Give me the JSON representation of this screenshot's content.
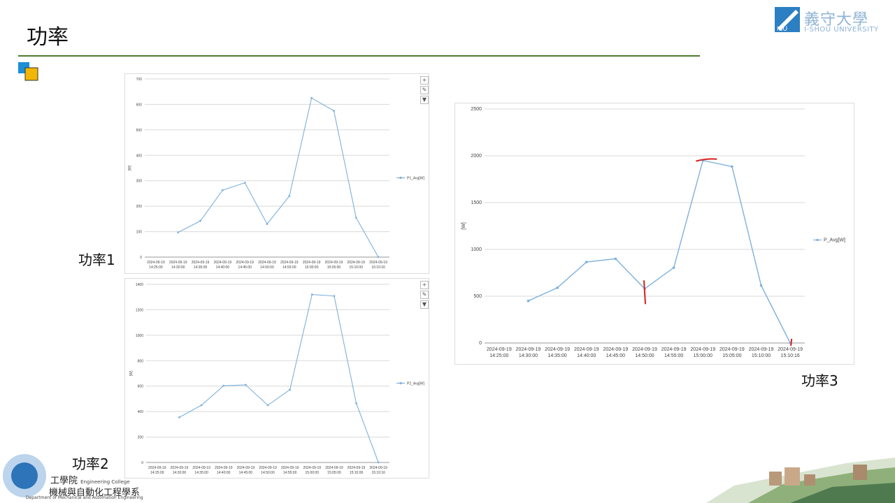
{
  "slide": {
    "title": "功率",
    "logo": {
      "cn": "義守大學",
      "en": "I-SHOU UNIVERSITY",
      "mark": "ISU"
    },
    "labels": {
      "chart1": "功率1",
      "chart2": "功率2",
      "chart3": "功率3"
    },
    "footer": {
      "college_cn": "工學院",
      "college_en": "Engineering College",
      "dept_cn": "機械與自動化工程學系",
      "dept_en": "Department of Mechanical and Automation Engineering"
    },
    "tool_icons": [
      "plus-icon",
      "brush-icon",
      "filter-icon"
    ],
    "colors": {
      "series": "#7eb1dc",
      "rule": "#4e7a2c",
      "annotation": "#d81e1e"
    }
  },
  "chart_data": [
    {
      "type": "line",
      "ylabel": "[W]",
      "ylim": [
        0,
        700
      ],
      "yticks": [
        0,
        100,
        200,
        300,
        400,
        500,
        600,
        700
      ],
      "categories": [
        [
          "2024-09-19",
          "14:25:00"
        ],
        [
          "2024-09-19",
          "14:30:00"
        ],
        [
          "2024-09-19",
          "14:35:00"
        ],
        [
          "2024-09-19",
          "14:40:00"
        ],
        [
          "2024-09-19",
          "14:45:00"
        ],
        [
          "2024-09-19",
          "14:50:00"
        ],
        [
          "2024-09-19",
          "14:55:00"
        ],
        [
          "2024-09-19",
          "15:00:00"
        ],
        [
          "2024-09-19",
          "15:05:00"
        ],
        [
          "2024-09-19",
          "15:10:00"
        ],
        [
          "2024-09-19",
          "15:10:16"
        ]
      ],
      "series": [
        {
          "name": "P1_Avg[W]",
          "values": [
            null,
            97,
            142,
            263,
            292,
            130,
            240,
            625,
            575,
            155,
            0
          ]
        }
      ],
      "legend": "right",
      "grid": true
    },
    {
      "type": "line",
      "ylabel": "[W]",
      "ylim": [
        0,
        1400
      ],
      "yticks": [
        0,
        200,
        400,
        600,
        800,
        1000,
        1200,
        1400
      ],
      "categories": [
        [
          "2024-09-19",
          "14:25:00"
        ],
        [
          "2024-09-19",
          "14:30:00"
        ],
        [
          "2024-09-19",
          "14:35:00"
        ],
        [
          "2024-09-19",
          "14:40:00"
        ],
        [
          "2024-09-19",
          "14:45:00"
        ],
        [
          "2024-09-19",
          "14:50:00"
        ],
        [
          "2024-09-19",
          "14:55:00"
        ],
        [
          "2024-09-19",
          "15:00:00"
        ],
        [
          "2024-09-19",
          "15:05:00"
        ],
        [
          "2024-09-19",
          "15:10:00"
        ],
        [
          "2024-09-19",
          "15:10:16"
        ]
      ],
      "series": [
        {
          "name": "P2_Avg[W]",
          "values": [
            null,
            355,
            450,
            603,
            610,
            450,
            572,
            1320,
            1308,
            465,
            0
          ]
        }
      ],
      "legend": "right",
      "grid": true
    },
    {
      "type": "line",
      "ylabel": "[W]",
      "ylim": [
        0,
        2500
      ],
      "yticks": [
        0,
        500,
        1000,
        1500,
        2000,
        2500
      ],
      "categories": [
        [
          "2024-09-19",
          "14:25:00"
        ],
        [
          "2024-09-19",
          "14:30:00"
        ],
        [
          "2024-09-19",
          "14:35:00"
        ],
        [
          "2024-09-19",
          "14:40:00"
        ],
        [
          "2024-09-19",
          "14:45:00"
        ],
        [
          "2024-09-19",
          "14:50:00"
        ],
        [
          "2024-09-19",
          "14:55:00"
        ],
        [
          "2024-09-19",
          "15:00:00"
        ],
        [
          "2024-09-19",
          "15:05:00"
        ],
        [
          "2024-09-19",
          "15:10:00"
        ],
        [
          "2024-09-19",
          "15:10:16"
        ]
      ],
      "series": [
        {
          "name": "P_Avg[W]",
          "values": [
            null,
            450,
            590,
            865,
            900,
            580,
            805,
            1950,
            1885,
            615,
            0
          ]
        }
      ],
      "legend": "right",
      "grid": true
    }
  ]
}
